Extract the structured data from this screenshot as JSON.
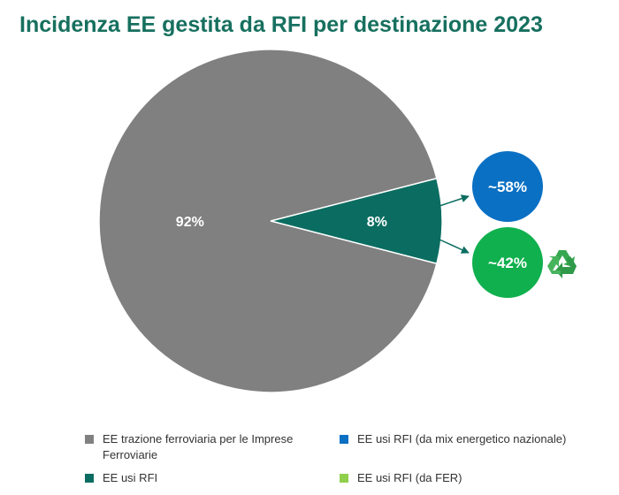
{
  "title": "Incidenza EE gestita da RFI per destinazione 2023",
  "colors": {
    "title": "#17705f",
    "gray": "#808080",
    "teal": "#0b6d61",
    "blue": "#0a70c4",
    "green": "#10b04e",
    "lightgreen": "#8fcf4b",
    "recycle": "#36a852"
  },
  "chart_data": [
    {
      "type": "pie",
      "slices": [
        {
          "label": "EE trazione ferroviaria per le Imprese Ferroviarie",
          "value": 92,
          "data_label": "92%",
          "color": "#808080"
        },
        {
          "label": "EE usi RFI",
          "value": 8,
          "data_label": "8%",
          "color": "#0b6d61"
        }
      ]
    },
    {
      "type": "pie",
      "slices": [
        {
          "label": "EE usi RFI (da mix energetico nazionale)",
          "value": 58,
          "data_label": "~58%",
          "color": "#0a70c4"
        },
        {
          "label": "EE usi RFI (da FER)",
          "value": 42,
          "data_label": "~42%",
          "color": "#10b04e"
        }
      ]
    }
  ],
  "legend": [
    {
      "label": "EE trazione ferroviaria per le Imprese Ferroviarie",
      "color": "#808080"
    },
    {
      "label": "EE usi RFI (da mix energetico nazionale)",
      "color": "#0a70c4"
    },
    {
      "label": "EE usi RFI",
      "color": "#0b6d61"
    },
    {
      "label": "EE usi RFI (da FER)",
      "color": "#8fcf4b"
    }
  ],
  "icons": {
    "recycle": "recycle-icon"
  }
}
